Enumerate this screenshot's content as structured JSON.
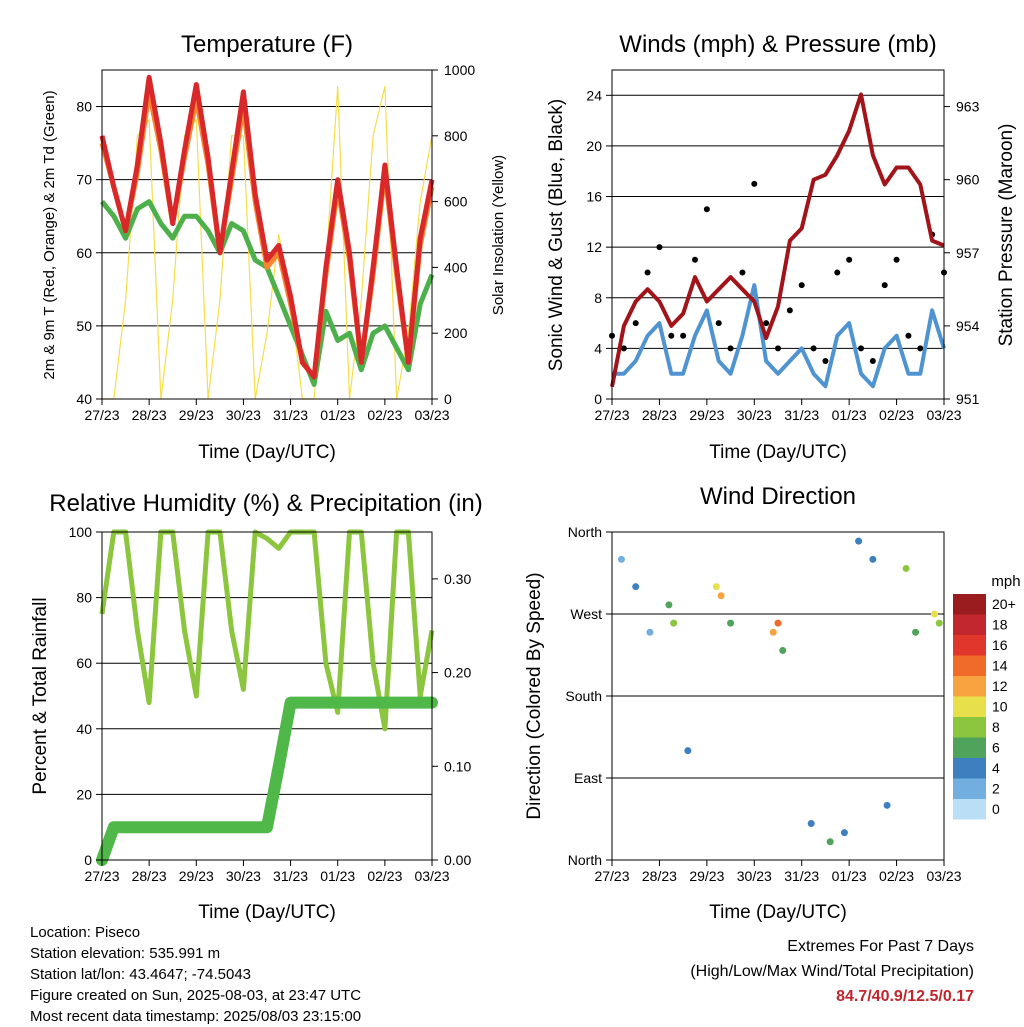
{
  "x_ticks": [
    "27/23",
    "28/23",
    "29/23",
    "30/23",
    "31/23",
    "01/23",
    "02/23",
    "03/23"
  ],
  "panels": {
    "temperature": {
      "title": "Temperature (F)",
      "xlabel": "Time (Day/UTC)",
      "ylabel_left": "2m & 9m T (Red, Orange) & 2m Td (Green)",
      "ylabel_right": "Solar Insolation (Yellow)",
      "yticks_left": [
        "40",
        "50",
        "60",
        "70",
        "80"
      ],
      "yticks_right": [
        "0",
        "200",
        "400",
        "600",
        "800",
        "1000"
      ]
    },
    "winds": {
      "title": "Winds (mph) & Pressure (mb)",
      "xlabel": "Time (Day/UTC)",
      "ylabel_left": "Sonic Wind & Gust (Blue, Black)",
      "ylabel_right": "Station Pressure (Maroon)",
      "yticks_left": [
        "0",
        "4",
        "8",
        "12",
        "16",
        "20",
        "24"
      ],
      "yticks_right": [
        "951",
        "954",
        "957",
        "960",
        "963"
      ]
    },
    "humidity": {
      "title": "Relative Humidity (%) & Precipitation (in)",
      "xlabel": "Time (Day/UTC)",
      "ylabel_left": "Percent & Total Rainfall",
      "yticks_left": [
        "0",
        "20",
        "40",
        "60",
        "80",
        "100"
      ],
      "yticks_right": [
        "0.00",
        "0.10",
        "0.20",
        "0.30"
      ]
    },
    "direction": {
      "title": "Wind Direction",
      "xlabel": "Time (Day/UTC)",
      "ylabel_left": "Direction (Colored By Speed)",
      "yticks_left": [
        "North",
        "East",
        "South",
        "West",
        "North"
      ],
      "legend_title": "mph",
      "legend_labels": [
        "20+",
        "18",
        "16",
        "14",
        "12",
        "10",
        "8",
        "6",
        "4",
        "2",
        "0"
      ],
      "legend_colors": [
        "#9b1c1f",
        "#c1272d",
        "#e0362b",
        "#f06a2a",
        "#f8a340",
        "#e7e04a",
        "#8cc63f",
        "#4fa35a",
        "#3e7fbf",
        "#73aee0",
        "#b9def5"
      ]
    }
  },
  "footer": {
    "location": "Location: Piseco",
    "elevation": "Station elevation: 535.991 m",
    "latlon": "Station lat/lon: 43.4647; -74.5043",
    "created": "Figure created on Sun, 2025-08-03, at 23:47 UTC",
    "recent": "Most recent data timestamp: 2025/08/03 23:15:00",
    "extremes_title": "Extremes For Past 7 Days",
    "extremes_sub": "(High/Low/Max Wind/Total Precipitation)",
    "extremes_values": "84.7/40.9/12.5/0.17"
  },
  "chart_data": [
    {
      "type": "line",
      "title": "Temperature (F)",
      "xlabel": "Time (Day/UTC)",
      "ylabel": "2m & 9m T (Red, Orange) & 2m Td (Green)",
      "y2label": "Solar Insolation (Yellow)",
      "ylim": [
        40,
        85
      ],
      "y2lim": [
        0,
        1000
      ],
      "x": [
        0,
        0.25,
        0.5,
        0.75,
        1,
        1.25,
        1.5,
        1.75,
        2,
        2.25,
        2.5,
        2.75,
        3,
        3.25,
        3.5,
        3.75,
        4,
        4.25,
        4.5,
        4.75,
        5,
        5.25,
        5.5,
        5.75,
        6,
        6.25,
        6.5,
        6.75,
        7
      ],
      "series": [
        {
          "name": "2m T",
          "color": "#d9282a",
          "axis": "left",
          "values": [
            76,
            69,
            63,
            72,
            84,
            75,
            64,
            74,
            83,
            73,
            60,
            71,
            82,
            68,
            59,
            61,
            54,
            45,
            43,
            58,
            70,
            60,
            45,
            58,
            72,
            58,
            45,
            62,
            70
          ]
        },
        {
          "name": "9m T",
          "color": "#f7852f",
          "axis": "left",
          "values": [
            75,
            69,
            63,
            71,
            82,
            74,
            64,
            73,
            81,
            72,
            60,
            70,
            80,
            67,
            58,
            60,
            53,
            45,
            43,
            57,
            69,
            59,
            45,
            57,
            71,
            57,
            45,
            61,
            69
          ]
        },
        {
          "name": "2m Td",
          "color": "#4eb04b",
          "axis": "left",
          "values": [
            67,
            65,
            62,
            66,
            67,
            64,
            62,
            65,
            65,
            63,
            60,
            64,
            63,
            59,
            58,
            54,
            50,
            46,
            42,
            52,
            48,
            49,
            44,
            49,
            50,
            47,
            44,
            53,
            57
          ]
        },
        {
          "name": "Solar",
          "color": "#f5de4a",
          "axis": "right",
          "values": [
            0,
            0,
            300,
            800,
            850,
            0,
            300,
            800,
            850,
            0,
            300,
            800,
            800,
            0,
            200,
            500,
            300,
            0,
            0,
            400,
            950,
            0,
            300,
            800,
            950,
            0,
            200,
            600,
            800
          ]
        }
      ]
    },
    {
      "type": "line",
      "title": "Winds (mph) & Pressure (mb)",
      "xlabel": "Time (Day/UTC)",
      "ylabel": "Sonic Wind & Gust (Blue, Black)",
      "y2label": "Station Pressure (Maroon)",
      "ylim": [
        0,
        26
      ],
      "y2lim": [
        951,
        964.5
      ],
      "x": [
        0,
        0.25,
        0.5,
        0.75,
        1,
        1.25,
        1.5,
        1.75,
        2,
        2.25,
        2.5,
        2.75,
        3,
        3.25,
        3.5,
        3.75,
        4,
        4.25,
        4.5,
        4.75,
        5,
        5.25,
        5.5,
        5.75,
        6,
        6.25,
        6.5,
        6.75,
        7
      ],
      "series": [
        {
          "name": "Wind",
          "color": "#4f93d0",
          "axis": "left",
          "values": [
            2,
            2,
            3,
            5,
            6,
            2,
            2,
            5,
            7,
            3,
            2,
            5,
            9,
            3,
            2,
            3,
            4,
            2,
            1,
            5,
            6,
            2,
            1,
            4,
            5,
            2,
            2,
            7,
            4
          ]
        },
        {
          "name": "Gust",
          "color": "#000000",
          "axis": "left",
          "values": [
            5,
            4,
            6,
            10,
            12,
            5,
            5,
            11,
            15,
            6,
            4,
            10,
            17,
            6,
            4,
            7,
            9,
            4,
            3,
            10,
            11,
            4,
            3,
            9,
            11,
            5,
            4,
            13,
            10
          ]
        },
        {
          "name": "Pressure",
          "color": "#a0141a",
          "axis": "right",
          "values": [
            951.5,
            954.0,
            955.0,
            955.5,
            955.0,
            954.0,
            954.5,
            956.0,
            955.0,
            955.5,
            956.0,
            955.5,
            955.0,
            953.5,
            954.8,
            957.5,
            958.0,
            960.0,
            960.2,
            961.0,
            962.0,
            963.5,
            961.0,
            959.8,
            960.5,
            960.5,
            959.8,
            957.5,
            957.3
          ]
        }
      ]
    },
    {
      "type": "line",
      "title": "Relative Humidity (%) & Precipitation (in)",
      "xlabel": "Time (Day/UTC)",
      "ylabel": "Percent & Total Rainfall",
      "ylim": [
        0,
        100
      ],
      "y2lim": [
        0,
        0.35
      ],
      "x": [
        0,
        0.25,
        0.5,
        0.75,
        1,
        1.25,
        1.5,
        1.75,
        2,
        2.25,
        2.5,
        2.75,
        3,
        3.25,
        3.5,
        3.75,
        4,
        4.25,
        4.5,
        4.75,
        5,
        5.25,
        5.5,
        5.75,
        6,
        6.25,
        6.5,
        6.75,
        7
      ],
      "series": [
        {
          "name": "RH",
          "color": "#8cc63f",
          "axis": "left",
          "values": [
            75,
            100,
            100,
            70,
            48,
            100,
            100,
            70,
            50,
            100,
            100,
            70,
            52,
            100,
            98,
            95,
            100,
            100,
            100,
            60,
            45,
            100,
            100,
            60,
            40,
            100,
            100,
            50,
            70
          ]
        },
        {
          "name": "Precip",
          "color": "#4fb848",
          "axis": "right",
          "values": [
            0,
            0.035,
            0.035,
            0.035,
            0.035,
            0.035,
            0.035,
            0.035,
            0.035,
            0.035,
            0.035,
            0.035,
            0.035,
            0.035,
            0.035,
            0.1,
            0.168,
            0.168,
            0.168,
            0.168,
            0.168,
            0.168,
            0.168,
            0.168,
            0.168,
            0.168,
            0.168,
            0.168,
            0.168
          ]
        }
      ]
    },
    {
      "type": "scatter",
      "title": "Wind Direction",
      "xlabel": "Time (Day/UTC)",
      "ylabel": "Direction (Colored By Speed)",
      "ylim": [
        0,
        360
      ],
      "colorbar": {
        "title": "mph",
        "labels": [
          "20+",
          "18",
          "16",
          "14",
          "12",
          "10",
          "8",
          "6",
          "4",
          "2",
          "0"
        ]
      },
      "points": [
        {
          "x": 0.2,
          "dir": 330,
          "speed": 2
        },
        {
          "x": 0.5,
          "dir": 300,
          "speed": 3
        },
        {
          "x": 0.8,
          "dir": 250,
          "speed": 2
        },
        {
          "x": 1.2,
          "dir": 280,
          "speed": 6
        },
        {
          "x": 1.3,
          "dir": 260,
          "speed": 8
        },
        {
          "x": 1.6,
          "dir": 120,
          "speed": 3
        },
        {
          "x": 2.2,
          "dir": 300,
          "speed": 9
        },
        {
          "x": 2.3,
          "dir": 290,
          "speed": 11
        },
        {
          "x": 2.5,
          "dir": 260,
          "speed": 6
        },
        {
          "x": 3.4,
          "dir": 250,
          "speed": 11
        },
        {
          "x": 3.5,
          "dir": 260,
          "speed": 13
        },
        {
          "x": 3.6,
          "dir": 230,
          "speed": 5
        },
        {
          "x": 4.2,
          "dir": 40,
          "speed": 4
        },
        {
          "x": 4.6,
          "dir": 20,
          "speed": 5
        },
        {
          "x": 4.9,
          "dir": 30,
          "speed": 4
        },
        {
          "x": 5.2,
          "dir": 350,
          "speed": 3
        },
        {
          "x": 5.5,
          "dir": 330,
          "speed": 4
        },
        {
          "x": 5.8,
          "dir": 60,
          "speed": 3
        },
        {
          "x": 6.2,
          "dir": 320,
          "speed": 7
        },
        {
          "x": 6.4,
          "dir": 250,
          "speed": 5
        },
        {
          "x": 6.8,
          "dir": 270,
          "speed": 9
        },
        {
          "x": 6.9,
          "dir": 260,
          "speed": 8
        }
      ]
    }
  ]
}
